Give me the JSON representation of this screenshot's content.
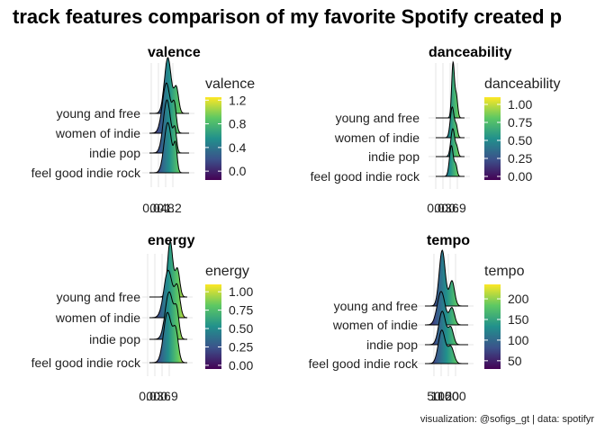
{
  "title": "track features comparison of my favorite Spotify created p",
  "caption": "visualization: @sofigs_gt | data: spotifyr",
  "colors": {
    "viridis": [
      "#440154",
      "#3b528b",
      "#21908c",
      "#5dc863",
      "#fde725"
    ],
    "grid": "#e6e6e6",
    "outline": "#000000"
  },
  "chart_data": [
    {
      "type": "ridgeline",
      "title": "valence",
      "categories": [
        "young and free",
        "women of indie",
        "indie pop",
        "feel good indie rock"
      ],
      "x_tick_labels": [
        "0.0",
        "0.4",
        "0.8",
        "1.2"
      ],
      "xlim": [
        -0.1,
        1.3
      ],
      "legend": {
        "title": "valence",
        "labels": [
          "1.2",
          "0.8",
          "0.4",
          "0.0"
        ],
        "values": [
          1.2,
          0.8,
          0.4,
          0.0
        ],
        "range": [
          -0.15,
          1.25
        ],
        "placement": "right"
      },
      "series": [
        {
          "peaks": [
            {
              "mu": 0.55,
              "sd": 0.12,
              "w": 1.0
            },
            {
              "mu": 0.85,
              "sd": 0.08,
              "w": 0.45
            }
          ],
          "scale": 1.0
        },
        {
          "peaks": [
            {
              "mu": 0.5,
              "sd": 0.14,
              "w": 1.0
            },
            {
              "mu": 0.78,
              "sd": 0.07,
              "w": 0.5
            }
          ],
          "scale": 0.9
        },
        {
          "peaks": [
            {
              "mu": 0.52,
              "sd": 0.13,
              "w": 1.0
            },
            {
              "mu": 0.8,
              "sd": 0.06,
              "w": 0.4
            }
          ],
          "scale": 0.95
        },
        {
          "peaks": [
            {
              "mu": 0.55,
              "sd": 0.13,
              "w": 1.0
            },
            {
              "mu": 0.82,
              "sd": 0.06,
              "w": 0.5
            }
          ],
          "scale": 0.9
        }
      ]
    },
    {
      "type": "ridgeline",
      "title": "danceability",
      "categories": [
        "young and free",
        "women of indie",
        "indie pop",
        "feel good indie rock"
      ],
      "x_tick_labels": [
        "0.0",
        "0.3",
        "0.6",
        "0.9"
      ],
      "xlim": [
        -0.05,
        1.0
      ],
      "legend": {
        "title": "danceability",
        "labels": [
          "1.00",
          "0.75",
          "0.50",
          "0.25",
          "0.00"
        ],
        "values": [
          1.0,
          0.75,
          0.5,
          0.25,
          0.0
        ],
        "range": [
          -0.05,
          1.1
        ],
        "placement": "right"
      },
      "series": [
        {
          "peaks": [
            {
              "mu": 0.58,
              "sd": 0.05,
              "w": 1.0
            },
            {
              "mu": 0.7,
              "sd": 0.05,
              "w": 0.4
            }
          ],
          "scale": 1.0
        },
        {
          "peaks": [
            {
              "mu": 0.55,
              "sd": 0.07,
              "w": 1.0
            },
            {
              "mu": 0.7,
              "sd": 0.05,
              "w": 0.35
            }
          ],
          "scale": 0.55
        },
        {
          "peaks": [
            {
              "mu": 0.57,
              "sd": 0.07,
              "w": 1.0
            },
            {
              "mu": 0.72,
              "sd": 0.05,
              "w": 0.3
            }
          ],
          "scale": 0.5
        },
        {
          "peaks": [
            {
              "mu": 0.52,
              "sd": 0.07,
              "w": 1.0
            },
            {
              "mu": 0.68,
              "sd": 0.05,
              "w": 0.35
            }
          ],
          "scale": 0.55
        }
      ]
    },
    {
      "type": "ridgeline",
      "title": "energy",
      "categories": [
        "young and free",
        "women of indie",
        "indie pop",
        "feel good indie rock"
      ],
      "x_tick_labels": [
        "0.0",
        "0.3",
        "0.6",
        "0.9"
      ],
      "xlim": [
        -0.05,
        1.1
      ],
      "legend": {
        "title": "energy",
        "labels": [
          "1.00",
          "0.75",
          "0.50",
          "0.25",
          "0.00"
        ],
        "values": [
          1.0,
          0.75,
          0.5,
          0.25,
          0.0
        ],
        "range": [
          -0.05,
          1.1
        ],
        "placement": "right"
      },
      "series": [
        {
          "peaks": [
            {
              "mu": 0.58,
              "sd": 0.08,
              "w": 1.0
            },
            {
              "mu": 0.8,
              "sd": 0.07,
              "w": 0.5
            }
          ],
          "scale": 1.0
        },
        {
          "peaks": [
            {
              "mu": 0.52,
              "sd": 0.13,
              "w": 1.0
            },
            {
              "mu": 0.8,
              "sd": 0.08,
              "w": 0.6
            }
          ],
          "scale": 0.85
        },
        {
          "peaks": [
            {
              "mu": 0.55,
              "sd": 0.12,
              "w": 1.0
            },
            {
              "mu": 0.78,
              "sd": 0.07,
              "w": 0.55
            }
          ],
          "scale": 0.85
        },
        {
          "peaks": [
            {
              "mu": 0.5,
              "sd": 0.12,
              "w": 1.0
            },
            {
              "mu": 0.75,
              "sd": 0.08,
              "w": 0.6
            }
          ],
          "scale": 0.9
        }
      ]
    },
    {
      "type": "ridgeline",
      "title": "tempo",
      "categories": [
        "young and free",
        "women of indie",
        "indie pop",
        "feel good indie rock"
      ],
      "x_tick_labels": [
        "50",
        "100",
        "150",
        "200"
      ],
      "xlim": [
        40,
        240
      ],
      "legend": {
        "title": "tempo",
        "labels": [
          "200",
          "150",
          "100",
          "50"
        ],
        "values": [
          200,
          150,
          100,
          50
        ],
        "range": [
          30,
          235
        ],
        "placement": "right"
      },
      "series": [
        {
          "peaks": [
            {
              "mu": 120,
              "sd": 14,
              "w": 1.0
            },
            {
              "mu": 165,
              "sd": 12,
              "w": 0.45
            }
          ],
          "scale": 1.0
        },
        {
          "peaks": [
            {
              "mu": 115,
              "sd": 18,
              "w": 1.0
            },
            {
              "mu": 165,
              "sd": 12,
              "w": 0.5
            }
          ],
          "scale": 0.6
        },
        {
          "peaks": [
            {
              "mu": 120,
              "sd": 16,
              "w": 1.0
            },
            {
              "mu": 160,
              "sd": 12,
              "w": 0.5
            }
          ],
          "scale": 0.6
        },
        {
          "peaks": [
            {
              "mu": 118,
              "sd": 16,
              "w": 1.0
            },
            {
              "mu": 160,
              "sd": 14,
              "w": 0.5
            }
          ],
          "scale": 0.6
        }
      ]
    }
  ]
}
